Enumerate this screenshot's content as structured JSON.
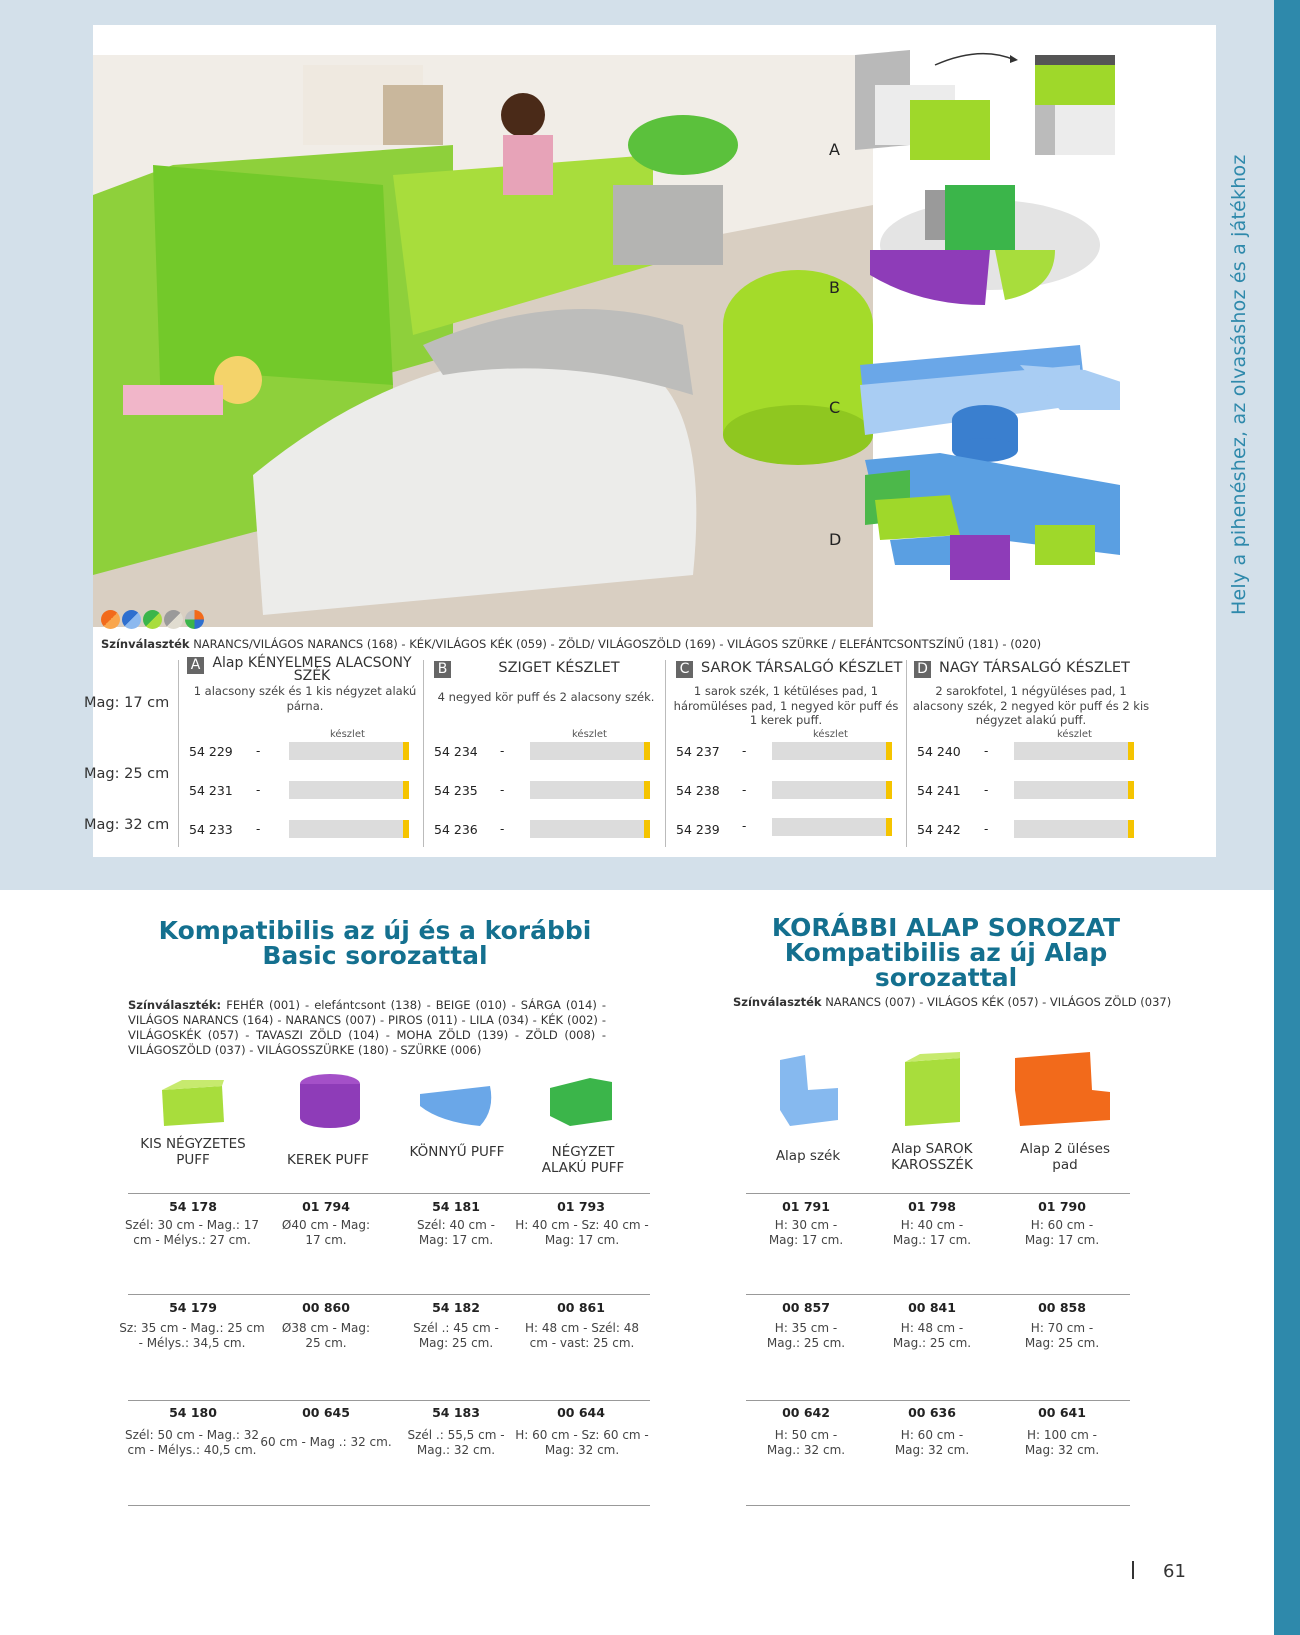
{
  "side_title": "Hely a pihenéshez, az olvasáshoz és a játékhoz",
  "page_number": "61",
  "set_letters": [
    "A",
    "B",
    "C",
    "D"
  ],
  "color_prefix": "Színválaszték",
  "color_line": "NARANCS/VILÁGOS NARANCS (168) - KÉK/VILÁGOS KÉK (059) - ZÖLD/ VILÁGOSZÖLD (169) - VILÁGOS SZÜRKE / ELEFÁNTCSONTSZÍNŰ (181) - (020)",
  "heights": [
    "Mag: 17 cm",
    "Mag: 25 cm",
    "Mag: 32 cm"
  ],
  "sets": [
    {
      "letter": "A",
      "title": "Alap KÉNYELMES ALACSONY SZÉK",
      "desc": "1 alacsony szék és 1 kis négyzet alakú párna.",
      "unit": "készlet",
      "codes": [
        "54 229",
        "54 231",
        "54 233"
      ]
    },
    {
      "letter": "B",
      "title": "SZIGET KÉSZLET",
      "desc": "4 negyed kör puff és 2 alacsony szék.",
      "unit": "készlet",
      "codes": [
        "54 234",
        "54 235",
        "54 236"
      ]
    },
    {
      "letter": "C",
      "title": "SAROK TÁRSALGÓ KÉSZLET",
      "desc": "1 sarok szék, 1 kétüléses pad, 1 háromüléses pad, 1 negyed kör puff és 1 kerek puff.",
      "unit": "készlet",
      "codes": [
        "54 237",
        "54 238",
        "54 239"
      ]
    },
    {
      "letter": "D",
      "title": "NAGY TÁRSALGÓ KÉSZLET",
      "desc": "2 sarokfotel, 1 négyüléses pad, 1 alacsony szék, 2 negyed kör puff és 2 kis négyzet alakú puff.",
      "unit": "készlet",
      "codes": [
        "54 240",
        "54 241",
        "54 242"
      ]
    }
  ],
  "dash": "-",
  "left_section": {
    "title_line1": "Kompatibilis az új és a korábbi",
    "title_line2": "Basic sorozattal",
    "colors_prefix": "Színválaszték:",
    "colors": "FEHÉR (001) - elefántcsont (138) - BEIGE (010) - SÁRGA (014) - VILÁGOS NARANCS (164) - NARANCS (007) - PIROS (011) - LILA (034) - KÉK (002) - VILÁGOSKÉK (057) - TAVASZI ZÖLD (104) - MOHA ZÖLD (139) - ZÖLD (008) - VILÁGOSZÖLD (037) - VILÁGOSSZÜRKE (180) - SZÜRKE (006)",
    "products": [
      {
        "name": "KIS NÉGYZETES PUFF",
        "rows": [
          {
            "code": "54 178",
            "dim": "Szél: 30 cm - Mag.: 17 cm - Mélys.: 27 cm."
          },
          {
            "code": "54 179",
            "dim": "Sz: 35 cm - Mag.: 25 cm - Mélys.: 34,5 cm."
          },
          {
            "code": "54 180",
            "dim": "Szél: 50 cm - Mag.: 32 cm - Mélys.: 40,5 cm."
          }
        ]
      },
      {
        "name": "KEREK PUFF",
        "rows": [
          {
            "code": "01 794",
            "dim": "Ø40 cm - Mag: 17 cm."
          },
          {
            "code": "00 860",
            "dim": "Ø38 cm - Mag: 25 cm."
          },
          {
            "code": "00 645",
            "dim": "60 cm - Mag .: 32 cm."
          }
        ]
      },
      {
        "name": "KÖNNYŰ PUFF",
        "rows": [
          {
            "code": "54 181",
            "dim": "Szél: 40 cm - Mag: 17 cm."
          },
          {
            "code": "54 182",
            "dim": "Szél .: 45 cm - Mag: 25 cm."
          },
          {
            "code": "54 183",
            "dim": "Szél .: 55,5 cm - Mag.: 32 cm."
          }
        ]
      },
      {
        "name": "NÉGYZET ALAKÚ PUFF",
        "rows": [
          {
            "code": "01 793",
            "dim": "H: 40 cm - Sz: 40 cm - Mag: 17 cm."
          },
          {
            "code": "00 861",
            "dim": "H: 48 cm - Szél: 48 cm - vast: 25 cm."
          },
          {
            "code": "00 644",
            "dim": "H: 60 cm - Sz: 60 cm - Mag: 32 cm."
          }
        ]
      }
    ]
  },
  "right_section": {
    "title_line1": "KORÁBBI ALAP SOROZAT",
    "title_line2": "Kompatibilis az új Alap sorozattal",
    "colors_prefix": "Színválaszték",
    "colors": "NARANCS (007) - VILÁGOS KÉK (057) - VILÁGOS ZÖLD (037)",
    "products": [
      {
        "name": "Alap szék",
        "rows": [
          {
            "code": "01 791",
            "dim": "H: 30 cm - Mag: 17 cm."
          },
          {
            "code": "00 857",
            "dim": "H: 35 cm - Mag.: 25 cm."
          },
          {
            "code": "00 642",
            "dim": "H: 50 cm - Mag.: 32 cm."
          }
        ]
      },
      {
        "name": "Alap SAROK KAROSSZÉK",
        "rows": [
          {
            "code": "01 798",
            "dim": "H: 40 cm - Mag.: 17 cm."
          },
          {
            "code": "00 841",
            "dim": "H: 48 cm - Mag.: 25 cm."
          },
          {
            "code": "00 636",
            "dim": "H: 60 cm - Mag: 32 cm."
          }
        ]
      },
      {
        "name": "Alap 2 üléses pad",
        "rows": [
          {
            "code": "01 790",
            "dim": "H: 60 cm - Mag: 17 cm."
          },
          {
            "code": "00 858",
            "dim": "H: 70 cm - Mag: 25 cm."
          },
          {
            "code": "00 641",
            "dim": "H: 100 cm - Mag: 32 cm."
          }
        ]
      }
    ]
  }
}
